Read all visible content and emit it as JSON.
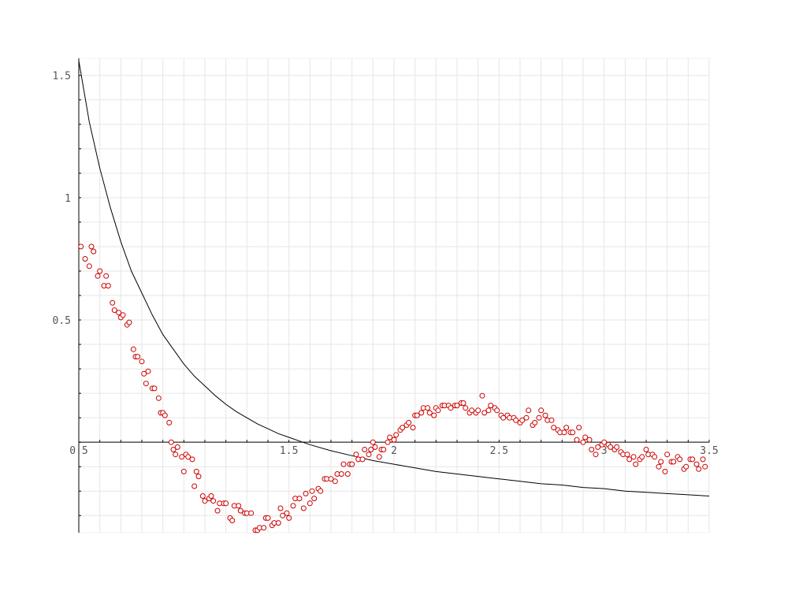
{
  "chart_data": {
    "type": "scatter",
    "title": "",
    "xlabel": "",
    "ylabel": "",
    "xlim": [
      0.5,
      3.5
    ],
    "ylim": [
      -0.37,
      1.57
    ],
    "grid": true,
    "legend": "none",
    "x_ticks": [
      {
        "value": 0.5,
        "label": "0.5"
      },
      {
        "value": 1.5,
        "label": "1.5"
      },
      {
        "value": 2.5,
        "label": "2.5"
      },
      {
        "value": 3.5,
        "label": "3.5"
      }
    ],
    "x_ticks_partial": [
      {
        "value": 2.0,
        "label": "2"
      },
      {
        "value": 3.0,
        "label": "3"
      }
    ],
    "y_ticks": [
      {
        "value": 0.5,
        "label": "0.5"
      },
      {
        "value": 1.0,
        "label": "1"
      },
      {
        "value": 1.5,
        "label": "1.5"
      }
    ],
    "series": [
      {
        "kind": "line",
        "color": "#000000",
        "points": [
          [
            0.5,
            1.56
          ],
          [
            0.55,
            1.31
          ],
          [
            0.6,
            1.12
          ],
          [
            0.65,
            0.96
          ],
          [
            0.7,
            0.82
          ],
          [
            0.75,
            0.7
          ],
          [
            0.8,
            0.61
          ],
          [
            0.85,
            0.52
          ],
          [
            0.9,
            0.44
          ],
          [
            0.95,
            0.38
          ],
          [
            1.0,
            0.32
          ],
          [
            1.05,
            0.27
          ],
          [
            1.1,
            0.23
          ],
          [
            1.15,
            0.19
          ],
          [
            1.2,
            0.155
          ],
          [
            1.25,
            0.125
          ],
          [
            1.3,
            0.1
          ],
          [
            1.35,
            0.075
          ],
          [
            1.4,
            0.055
          ],
          [
            1.45,
            0.035
          ],
          [
            1.5,
            0.02
          ],
          [
            1.6,
            -0.01
          ],
          [
            1.7,
            -0.035
          ],
          [
            1.8,
            -0.055
          ],
          [
            1.9,
            -0.075
          ],
          [
            2.0,
            -0.09
          ],
          [
            2.1,
            -0.105
          ],
          [
            2.2,
            -0.12
          ],
          [
            2.3,
            -0.13
          ],
          [
            2.4,
            -0.14
          ],
          [
            2.5,
            -0.15
          ],
          [
            2.6,
            -0.16
          ],
          [
            2.7,
            -0.17
          ],
          [
            2.8,
            -0.175
          ],
          [
            2.9,
            -0.185
          ],
          [
            3.0,
            -0.19
          ],
          [
            3.1,
            -0.2
          ],
          [
            3.2,
            -0.205
          ],
          [
            3.3,
            -0.21
          ],
          [
            3.4,
            -0.215
          ],
          [
            3.5,
            -0.22
          ]
        ]
      },
      {
        "kind": "scatter",
        "marker": "circle",
        "color": "#cc0000",
        "points": [
          [
            0.51,
            0.8
          ],
          [
            0.53,
            0.75
          ],
          [
            0.55,
            0.72
          ],
          [
            0.56,
            0.8
          ],
          [
            0.57,
            0.78
          ],
          [
            0.59,
            0.68
          ],
          [
            0.6,
            0.7
          ],
          [
            0.62,
            0.64
          ],
          [
            0.63,
            0.68
          ],
          [
            0.64,
            0.64
          ],
          [
            0.66,
            0.57
          ],
          [
            0.67,
            0.54
          ],
          [
            0.69,
            0.53
          ],
          [
            0.7,
            0.51
          ],
          [
            0.71,
            0.52
          ],
          [
            0.73,
            0.48
          ],
          [
            0.74,
            0.49
          ],
          [
            0.76,
            0.38
          ],
          [
            0.77,
            0.35
          ],
          [
            0.78,
            0.35
          ],
          [
            0.8,
            0.33
          ],
          [
            0.81,
            0.28
          ],
          [
            0.82,
            0.24
          ],
          [
            0.83,
            0.29
          ],
          [
            0.85,
            0.22
          ],
          [
            0.86,
            0.22
          ],
          [
            0.88,
            0.18
          ],
          [
            0.89,
            0.12
          ],
          [
            0.9,
            0.12
          ],
          [
            0.91,
            0.11
          ],
          [
            0.93,
            0.08
          ],
          [
            0.94,
            0.0
          ],
          [
            0.95,
            -0.03
          ],
          [
            0.96,
            -0.05
          ],
          [
            0.97,
            -0.02
          ],
          [
            0.99,
            -0.06
          ],
          [
            1.0,
            -0.12
          ],
          [
            1.01,
            -0.05
          ],
          [
            1.02,
            -0.06
          ],
          [
            1.04,
            -0.07
          ],
          [
            1.05,
            -0.18
          ],
          [
            1.06,
            -0.12
          ],
          [
            1.07,
            -0.14
          ],
          [
            1.09,
            -0.22
          ],
          [
            1.1,
            -0.24
          ],
          [
            1.12,
            -0.23
          ],
          [
            1.13,
            -0.22
          ],
          [
            1.14,
            -0.24
          ],
          [
            1.16,
            -0.28
          ],
          [
            1.17,
            -0.25
          ],
          [
            1.19,
            -0.25
          ],
          [
            1.2,
            -0.25
          ],
          [
            1.22,
            -0.31
          ],
          [
            1.23,
            -0.32
          ],
          [
            1.24,
            -0.26
          ],
          [
            1.26,
            -0.26
          ],
          [
            1.27,
            -0.28
          ],
          [
            1.29,
            -0.29
          ],
          [
            1.3,
            -0.29
          ],
          [
            1.32,
            -0.29
          ],
          [
            1.34,
            -0.36
          ],
          [
            1.35,
            -0.36
          ],
          [
            1.36,
            -0.35
          ],
          [
            1.38,
            -0.35
          ],
          [
            1.39,
            -0.31
          ],
          [
            1.4,
            -0.31
          ],
          [
            1.42,
            -0.34
          ],
          [
            1.43,
            -0.33
          ],
          [
            1.45,
            -0.33
          ],
          [
            1.46,
            -0.27
          ],
          [
            1.47,
            -0.3
          ],
          [
            1.49,
            -0.29
          ],
          [
            1.5,
            -0.31
          ],
          [
            1.52,
            -0.26
          ],
          [
            1.53,
            -0.23
          ],
          [
            1.55,
            -0.23
          ],
          [
            1.57,
            -0.27
          ],
          [
            1.58,
            -0.21
          ],
          [
            1.6,
            -0.25
          ],
          [
            1.61,
            -0.2
          ],
          [
            1.62,
            -0.23
          ],
          [
            1.64,
            -0.19
          ],
          [
            1.65,
            -0.2
          ],
          [
            1.67,
            -0.15
          ],
          [
            1.68,
            -0.15
          ],
          [
            1.7,
            -0.15
          ],
          [
            1.72,
            -0.16
          ],
          [
            1.73,
            -0.13
          ],
          [
            1.75,
            -0.13
          ],
          [
            1.76,
            -0.09
          ],
          [
            1.78,
            -0.13
          ],
          [
            1.79,
            -0.09
          ],
          [
            1.8,
            -0.09
          ],
          [
            1.82,
            -0.05
          ],
          [
            1.83,
            -0.07
          ],
          [
            1.85,
            -0.07
          ],
          [
            1.86,
            -0.03
          ],
          [
            1.88,
            -0.05
          ],
          [
            1.89,
            -0.03
          ],
          [
            1.9,
            0.0
          ],
          [
            1.91,
            -0.02
          ],
          [
            1.93,
            -0.06
          ],
          [
            1.94,
            -0.03
          ],
          [
            1.95,
            -0.03
          ],
          [
            1.97,
            0.0
          ],
          [
            1.98,
            0.02
          ],
          [
            2.0,
            0.01
          ],
          [
            2.01,
            0.03
          ],
          [
            2.03,
            0.05
          ],
          [
            2.04,
            0.06
          ],
          [
            2.06,
            0.07
          ],
          [
            2.07,
            0.08
          ],
          [
            2.09,
            0.06
          ],
          [
            2.1,
            0.11
          ],
          [
            2.11,
            0.11
          ],
          [
            2.13,
            0.12
          ],
          [
            2.14,
            0.14
          ],
          [
            2.16,
            0.14
          ],
          [
            2.17,
            0.12
          ],
          [
            2.19,
            0.11
          ],
          [
            2.2,
            0.14
          ],
          [
            2.21,
            0.13
          ],
          [
            2.23,
            0.15
          ],
          [
            2.24,
            0.15
          ],
          [
            2.26,
            0.15
          ],
          [
            2.27,
            0.14
          ],
          [
            2.29,
            0.15
          ],
          [
            2.3,
            0.15
          ],
          [
            2.32,
            0.16
          ],
          [
            2.33,
            0.16
          ],
          [
            2.34,
            0.14
          ],
          [
            2.36,
            0.12
          ],
          [
            2.37,
            0.13
          ],
          [
            2.39,
            0.12
          ],
          [
            2.4,
            0.13
          ],
          [
            2.42,
            0.19
          ],
          [
            2.43,
            0.12
          ],
          [
            2.45,
            0.13
          ],
          [
            2.46,
            0.15
          ],
          [
            2.48,
            0.14
          ],
          [
            2.49,
            0.13
          ],
          [
            2.51,
            0.11
          ],
          [
            2.52,
            0.1
          ],
          [
            2.54,
            0.11
          ],
          [
            2.55,
            0.1
          ],
          [
            2.57,
            0.1
          ],
          [
            2.58,
            0.09
          ],
          [
            2.6,
            0.08
          ],
          [
            2.61,
            0.09
          ],
          [
            2.63,
            0.1
          ],
          [
            2.64,
            0.13
          ],
          [
            2.66,
            0.07
          ],
          [
            2.67,
            0.08
          ],
          [
            2.69,
            0.1
          ],
          [
            2.7,
            0.13
          ],
          [
            2.72,
            0.11
          ],
          [
            2.73,
            0.09
          ],
          [
            2.75,
            0.09
          ],
          [
            2.76,
            0.06
          ],
          [
            2.78,
            0.05
          ],
          [
            2.79,
            0.04
          ],
          [
            2.81,
            0.04
          ],
          [
            2.82,
            0.06
          ],
          [
            2.84,
            0.04
          ],
          [
            2.85,
            0.04
          ],
          [
            2.87,
            0.01
          ],
          [
            2.88,
            0.06
          ],
          [
            2.9,
            0.0
          ],
          [
            2.91,
            0.02
          ],
          [
            2.93,
            0.01
          ],
          [
            2.94,
            -0.03
          ],
          [
            2.96,
            -0.05
          ],
          [
            2.97,
            -0.02
          ],
          [
            2.99,
            -0.01
          ],
          [
            3.0,
            0.0
          ],
          [
            3.02,
            -0.01
          ],
          [
            3.03,
            -0.02
          ],
          [
            3.05,
            -0.03
          ],
          [
            3.06,
            -0.02
          ],
          [
            3.08,
            -0.04
          ],
          [
            3.09,
            -0.05
          ],
          [
            3.11,
            -0.05
          ],
          [
            3.12,
            -0.07
          ],
          [
            3.14,
            -0.06
          ],
          [
            3.15,
            -0.09
          ],
          [
            3.17,
            -0.07
          ],
          [
            3.18,
            -0.06
          ],
          [
            3.2,
            -0.03
          ],
          [
            3.21,
            -0.05
          ],
          [
            3.23,
            -0.05
          ],
          [
            3.24,
            -0.06
          ],
          [
            3.26,
            -0.1
          ],
          [
            3.27,
            -0.08
          ],
          [
            3.29,
            -0.12
          ],
          [
            3.3,
            -0.05
          ],
          [
            3.32,
            -0.08
          ],
          [
            3.33,
            -0.08
          ],
          [
            3.35,
            -0.06
          ],
          [
            3.36,
            -0.07
          ],
          [
            3.38,
            -0.11
          ],
          [
            3.39,
            -0.1
          ],
          [
            3.41,
            -0.07
          ],
          [
            3.42,
            -0.07
          ],
          [
            3.44,
            -0.09
          ],
          [
            3.45,
            -0.11
          ],
          [
            3.47,
            -0.07
          ],
          [
            3.48,
            -0.1
          ]
        ]
      }
    ]
  }
}
